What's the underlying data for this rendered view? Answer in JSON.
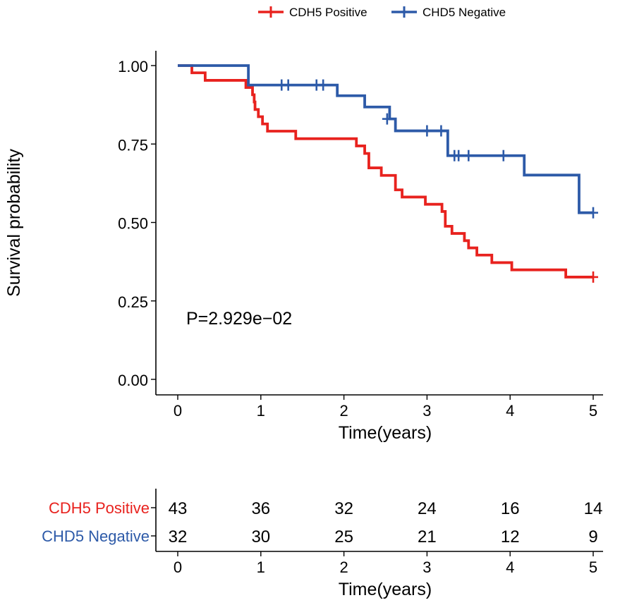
{
  "chart_data": {
    "type": "line",
    "subtype": "kaplan-meier",
    "title": "",
    "xlabel": "Time(years)",
    "ylabel": "Survival probability",
    "xlim": [
      0,
      5
    ],
    "ylim": [
      0,
      1
    ],
    "x_ticks": [
      "0",
      "1",
      "2",
      "3",
      "4",
      "5"
    ],
    "y_ticks": [
      "0.00",
      "0.25",
      "0.50",
      "0.75",
      "1.00"
    ],
    "legend_position": "top",
    "annotation": "P=2.929e−02",
    "series": [
      {
        "name": "CDH5 Positive",
        "color": "#e8221e",
        "steps": [
          [
            0,
            1.0
          ],
          [
            0.17,
            0.977
          ],
          [
            0.33,
            0.953
          ],
          [
            0.58,
            0.953
          ],
          [
            0.82,
            0.93
          ],
          [
            0.9,
            0.907
          ],
          [
            0.92,
            0.884
          ],
          [
            0.93,
            0.86
          ],
          [
            0.97,
            0.837
          ],
          [
            1.02,
            0.814
          ],
          [
            1.08,
            0.791
          ],
          [
            1.42,
            0.767
          ],
          [
            2.15,
            0.744
          ],
          [
            2.25,
            0.72
          ],
          [
            2.3,
            0.674
          ],
          [
            2.45,
            0.65
          ],
          [
            2.62,
            0.604
          ],
          [
            2.7,
            0.581
          ],
          [
            2.98,
            0.558
          ],
          [
            3.18,
            0.535
          ],
          [
            3.22,
            0.488
          ],
          [
            3.3,
            0.465
          ],
          [
            3.45,
            0.442
          ],
          [
            3.5,
            0.419
          ],
          [
            3.6,
            0.396
          ],
          [
            3.78,
            0.372
          ],
          [
            4.02,
            0.349
          ],
          [
            4.67,
            0.326
          ],
          [
            5.0,
            0.326
          ]
        ],
        "censored": [
          [
            5.0,
            0.326
          ]
        ]
      },
      {
        "name": "CHD5 Negative",
        "color": "#2d5aa8",
        "steps": [
          [
            0,
            1.0
          ],
          [
            0.85,
            0.938
          ],
          [
            1.92,
            0.904
          ],
          [
            2.25,
            0.868
          ],
          [
            2.55,
            0.83
          ],
          [
            2.62,
            0.792
          ],
          [
            3.25,
            0.713
          ],
          [
            4.17,
            0.651
          ],
          [
            4.83,
            0.531
          ],
          [
            5.0,
            0.531
          ]
        ],
        "censored": [
          [
            1.25,
            0.938
          ],
          [
            1.33,
            0.938
          ],
          [
            1.67,
            0.938
          ],
          [
            1.75,
            0.938
          ],
          [
            2.52,
            0.83
          ],
          [
            3.0,
            0.792
          ],
          [
            3.17,
            0.792
          ],
          [
            3.33,
            0.713
          ],
          [
            3.38,
            0.713
          ],
          [
            3.5,
            0.713
          ],
          [
            3.92,
            0.713
          ],
          [
            5.0,
            0.531
          ]
        ]
      }
    ],
    "risk_table": {
      "xlabel": "Time(years)",
      "x_ticks": [
        "0",
        "1",
        "2",
        "3",
        "4",
        "5"
      ],
      "rows": [
        {
          "name": "CDH5 Positive",
          "color": "#e8221e",
          "counts": [
            "43",
            "36",
            "32",
            "24",
            "16",
            "14"
          ]
        },
        {
          "name": "CHD5 Negative",
          "color": "#2d5aa8",
          "counts": [
            "32",
            "30",
            "25",
            "21",
            "12",
            "9"
          ]
        }
      ]
    }
  }
}
